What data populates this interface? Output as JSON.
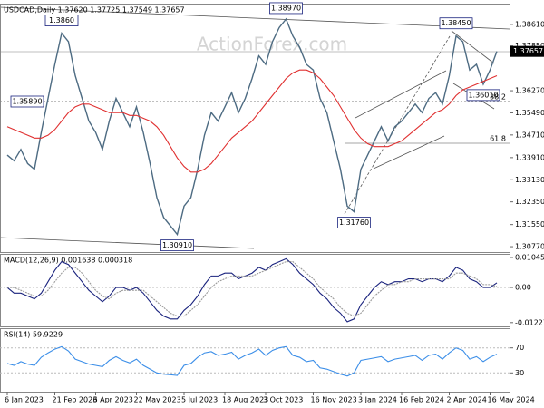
{
  "chart_data": [
    {
      "type": "line",
      "title": "USDCAD,Daily 1.37620 1.37725 1.37549 1.37657",
      "watermark": "ActionForex.com",
      "categories": [
        "6 Jan 2023",
        null,
        null,
        null,
        null,
        null,
        null,
        "21 Feb 2023",
        null,
        null,
        null,
        null,
        null,
        "6 Apr 2023",
        null,
        null,
        null,
        null,
        null,
        "22 May 2023",
        null,
        null,
        null,
        null,
        null,
        null,
        "5 Jul 2023",
        null,
        null,
        null,
        null,
        null,
        "18 Aug 2023",
        null,
        null,
        null,
        null,
        null,
        "3 Oct 2023",
        null,
        null,
        null,
        null,
        null,
        null,
        "16 Nov 2023",
        null,
        null,
        null,
        null,
        null,
        null,
        "3 Jan 2024",
        null,
        null,
        null,
        null,
        null,
        "16 Feb 2024",
        null,
        null,
        null,
        null,
        null,
        null,
        "2 Apr 2024",
        null,
        null,
        null,
        null,
        null,
        "16 May 2024",
        null
      ],
      "series": [
        {
          "name": "Close",
          "color": "#4d6b82",
          "values": [
            1.34,
            1.338,
            1.342,
            1.337,
            1.335,
            1.348,
            1.36,
            1.372,
            1.383,
            1.38,
            1.368,
            1.36,
            1.352,
            1.348,
            1.342,
            1.352,
            1.36,
            1.355,
            1.35,
            1.357,
            1.348,
            1.337,
            1.325,
            1.318,
            1.315,
            1.312,
            1.322,
            1.325,
            1.335,
            1.347,
            1.355,
            1.352,
            1.357,
            1.362,
            1.355,
            1.36,
            1.367,
            1.375,
            1.372,
            1.38,
            1.385,
            1.388,
            1.382,
            1.378,
            1.372,
            1.37,
            1.36,
            1.355,
            1.345,
            1.335,
            1.322,
            1.32,
            1.335,
            1.34,
            1.345,
            1.35,
            1.345,
            1.35,
            1.352,
            1.355,
            1.358,
            1.355,
            1.36,
            1.362,
            1.358,
            1.368,
            1.382,
            1.38,
            1.37,
            1.372,
            1.365,
            1.37,
            1.3766
          ]
        },
        {
          "name": "MA",
          "color": "#e03030",
          "values": [
            1.35,
            1.349,
            1.348,
            1.347,
            1.346,
            1.346,
            1.347,
            1.349,
            1.352,
            1.355,
            1.357,
            1.358,
            1.358,
            1.357,
            1.356,
            1.355,
            1.355,
            1.355,
            1.354,
            1.354,
            1.353,
            1.352,
            1.35,
            1.347,
            1.343,
            1.339,
            1.336,
            1.334,
            1.334,
            1.335,
            1.337,
            1.34,
            1.343,
            1.346,
            1.348,
            1.35,
            1.352,
            1.355,
            1.358,
            1.361,
            1.364,
            1.367,
            1.369,
            1.37,
            1.37,
            1.369,
            1.367,
            1.364,
            1.361,
            1.357,
            1.353,
            1.349,
            1.346,
            1.344,
            1.343,
            1.343,
            1.343,
            1.344,
            1.345,
            1.347,
            1.349,
            1.351,
            1.353,
            1.355,
            1.356,
            1.358,
            1.361,
            1.363,
            1.364,
            1.365,
            1.366,
            1.367,
            1.368
          ]
        }
      ],
      "ylim": [
        1.3058,
        1.3931
      ],
      "yticks": [
        {
          "value": 1.3861,
          "label": "1.38610"
        },
        {
          "value": 1.3785,
          "label": "1.37850"
        },
        {
          "value": 1.3627,
          "label": "1.36270"
        },
        {
          "value": 1.3549,
          "label": "1.35490"
        },
        {
          "value": 1.3471,
          "label": "1.34710"
        },
        {
          "value": 1.3391,
          "label": "1.33910"
        },
        {
          "value": 1.3313,
          "label": "1.33130"
        },
        {
          "value": 1.3235,
          "label": "1.32350"
        },
        {
          "value": 1.3155,
          "label": "1.31550"
        },
        {
          "value": 1.3077,
          "label": "1.30770"
        }
      ],
      "last_price": 1.37657,
      "annotations": [
        "1.3860",
        "1.38970",
        "1.30910",
        "1.31760",
        "1.38450",
        "1.35890",
        "1.36010",
        "38.2",
        "61.8"
      ]
    },
    {
      "type": "line",
      "title": "MACD(12,26,9) 0.001638 0.000318",
      "series": [
        {
          "name": "MACD",
          "color": "#1a237e",
          "values": [
            0,
            -0.002,
            -0.002,
            -0.003,
            -0.004,
            -0.002,
            0.002,
            0.006,
            0.009,
            0.008,
            0.005,
            0.002,
            -0.001,
            -0.003,
            -0.005,
            -0.003,
            0,
            0,
            -0.001,
            0,
            -0.002,
            -0.005,
            -0.008,
            -0.01,
            -0.011,
            -0.011,
            -0.008,
            -0.006,
            -0.003,
            0.001,
            0.004,
            0.004,
            0.005,
            0.005,
            0.003,
            0.004,
            0.005,
            0.007,
            0.006,
            0.008,
            0.009,
            0.01,
            0.008,
            0.005,
            0.003,
            0.001,
            -0.002,
            -0.004,
            -0.007,
            -0.009,
            -0.012,
            -0.011,
            -0.006,
            -0.003,
            0,
            0.002,
            0.001,
            0.002,
            0.002,
            0.003,
            0.003,
            0.002,
            0.003,
            0.003,
            0.002,
            0.004,
            0.007,
            0.006,
            0.003,
            0.002,
            0,
            0,
            0.0016
          ]
        },
        {
          "name": "Signal",
          "color": "#9a9a9a",
          "values": [
            0,
            0,
            -0.001,
            -0.002,
            -0.003,
            -0.003,
            -0.001,
            0.002,
            0.005,
            0.007,
            0.007,
            0.005,
            0.002,
            -0.001,
            -0.003,
            -0.004,
            -0.002,
            -0.001,
            -0.001,
            -0.001,
            -0.001,
            -0.003,
            -0.005,
            -0.007,
            -0.009,
            -0.01,
            -0.01,
            -0.008,
            -0.006,
            -0.003,
            0,
            0.002,
            0.003,
            0.004,
            0.004,
            0.004,
            0.004,
            0.005,
            0.006,
            0.007,
            0.008,
            0.009,
            0.009,
            0.007,
            0.005,
            0.003,
            0,
            -0.002,
            -0.004,
            -0.007,
            -0.009,
            -0.01,
            -0.009,
            -0.006,
            -0.003,
            -0.001,
            0.001,
            0.001,
            0.002,
            0.002,
            0.003,
            0.003,
            0.003,
            0.003,
            0.003,
            0.003,
            0.005,
            0.005,
            0.004,
            0.003,
            0.001,
            0.001,
            0.0003
          ]
        }
      ],
      "ylim": [
        -0.0136,
        0.0114
      ],
      "yticks": [
        0.010457,
        {
          "value": 0,
          "label": "0.00"
        },
        -0.012276
      ]
    },
    {
      "type": "line",
      "title": "RSI(14) 59.9229",
      "series": [
        {
          "name": "RSI",
          "color": "#3b8ee8",
          "values": [
            45,
            42,
            48,
            44,
            42,
            55,
            62,
            68,
            72,
            65,
            52,
            48,
            44,
            42,
            40,
            50,
            56,
            50,
            46,
            52,
            42,
            36,
            30,
            28,
            27,
            26,
            42,
            45,
            55,
            62,
            64,
            58,
            60,
            63,
            52,
            58,
            62,
            68,
            58,
            66,
            70,
            72,
            58,
            55,
            48,
            50,
            38,
            36,
            32,
            28,
            25,
            30,
            50,
            52,
            54,
            56,
            48,
            52,
            54,
            56,
            58,
            50,
            58,
            60,
            52,
            62,
            70,
            66,
            52,
            56,
            48,
            55,
            59.92
          ]
        }
      ],
      "ylim": [
        0,
        100
      ],
      "yticks": [
        70,
        30
      ]
    }
  ]
}
